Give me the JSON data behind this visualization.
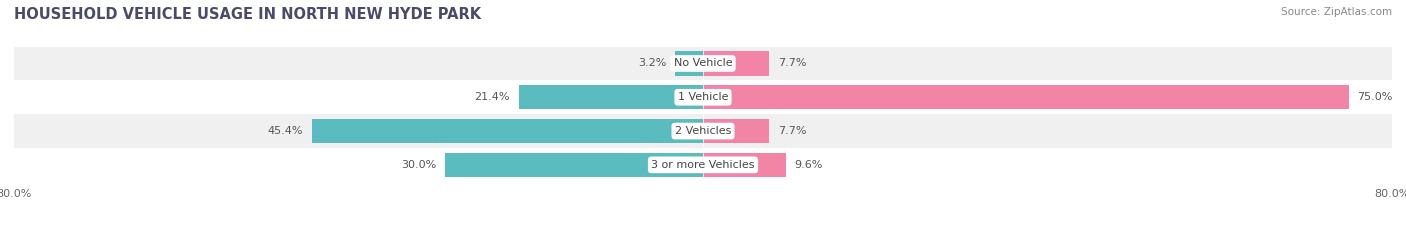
{
  "title": "HOUSEHOLD VEHICLE USAGE IN NORTH NEW HYDE PARK",
  "source": "Source: ZipAtlas.com",
  "categories": [
    "No Vehicle",
    "1 Vehicle",
    "2 Vehicles",
    "3 or more Vehicles"
  ],
  "owner_values": [
    3.2,
    21.4,
    45.4,
    30.0
  ],
  "renter_values": [
    7.7,
    75.0,
    7.7,
    9.6
  ],
  "owner_color": "#5bbcbf",
  "renter_color": "#f285a5",
  "xlim": [
    -80.0,
    80.0
  ],
  "bar_height": 0.72,
  "background_color": "#ffffff",
  "row_bg_even": "#f0f0f0",
  "row_bg_odd": "#ffffff",
  "title_fontsize": 10.5,
  "label_fontsize": 8.0,
  "tick_fontsize": 8.0,
  "source_fontsize": 7.5,
  "legend_fontsize": 8.0
}
